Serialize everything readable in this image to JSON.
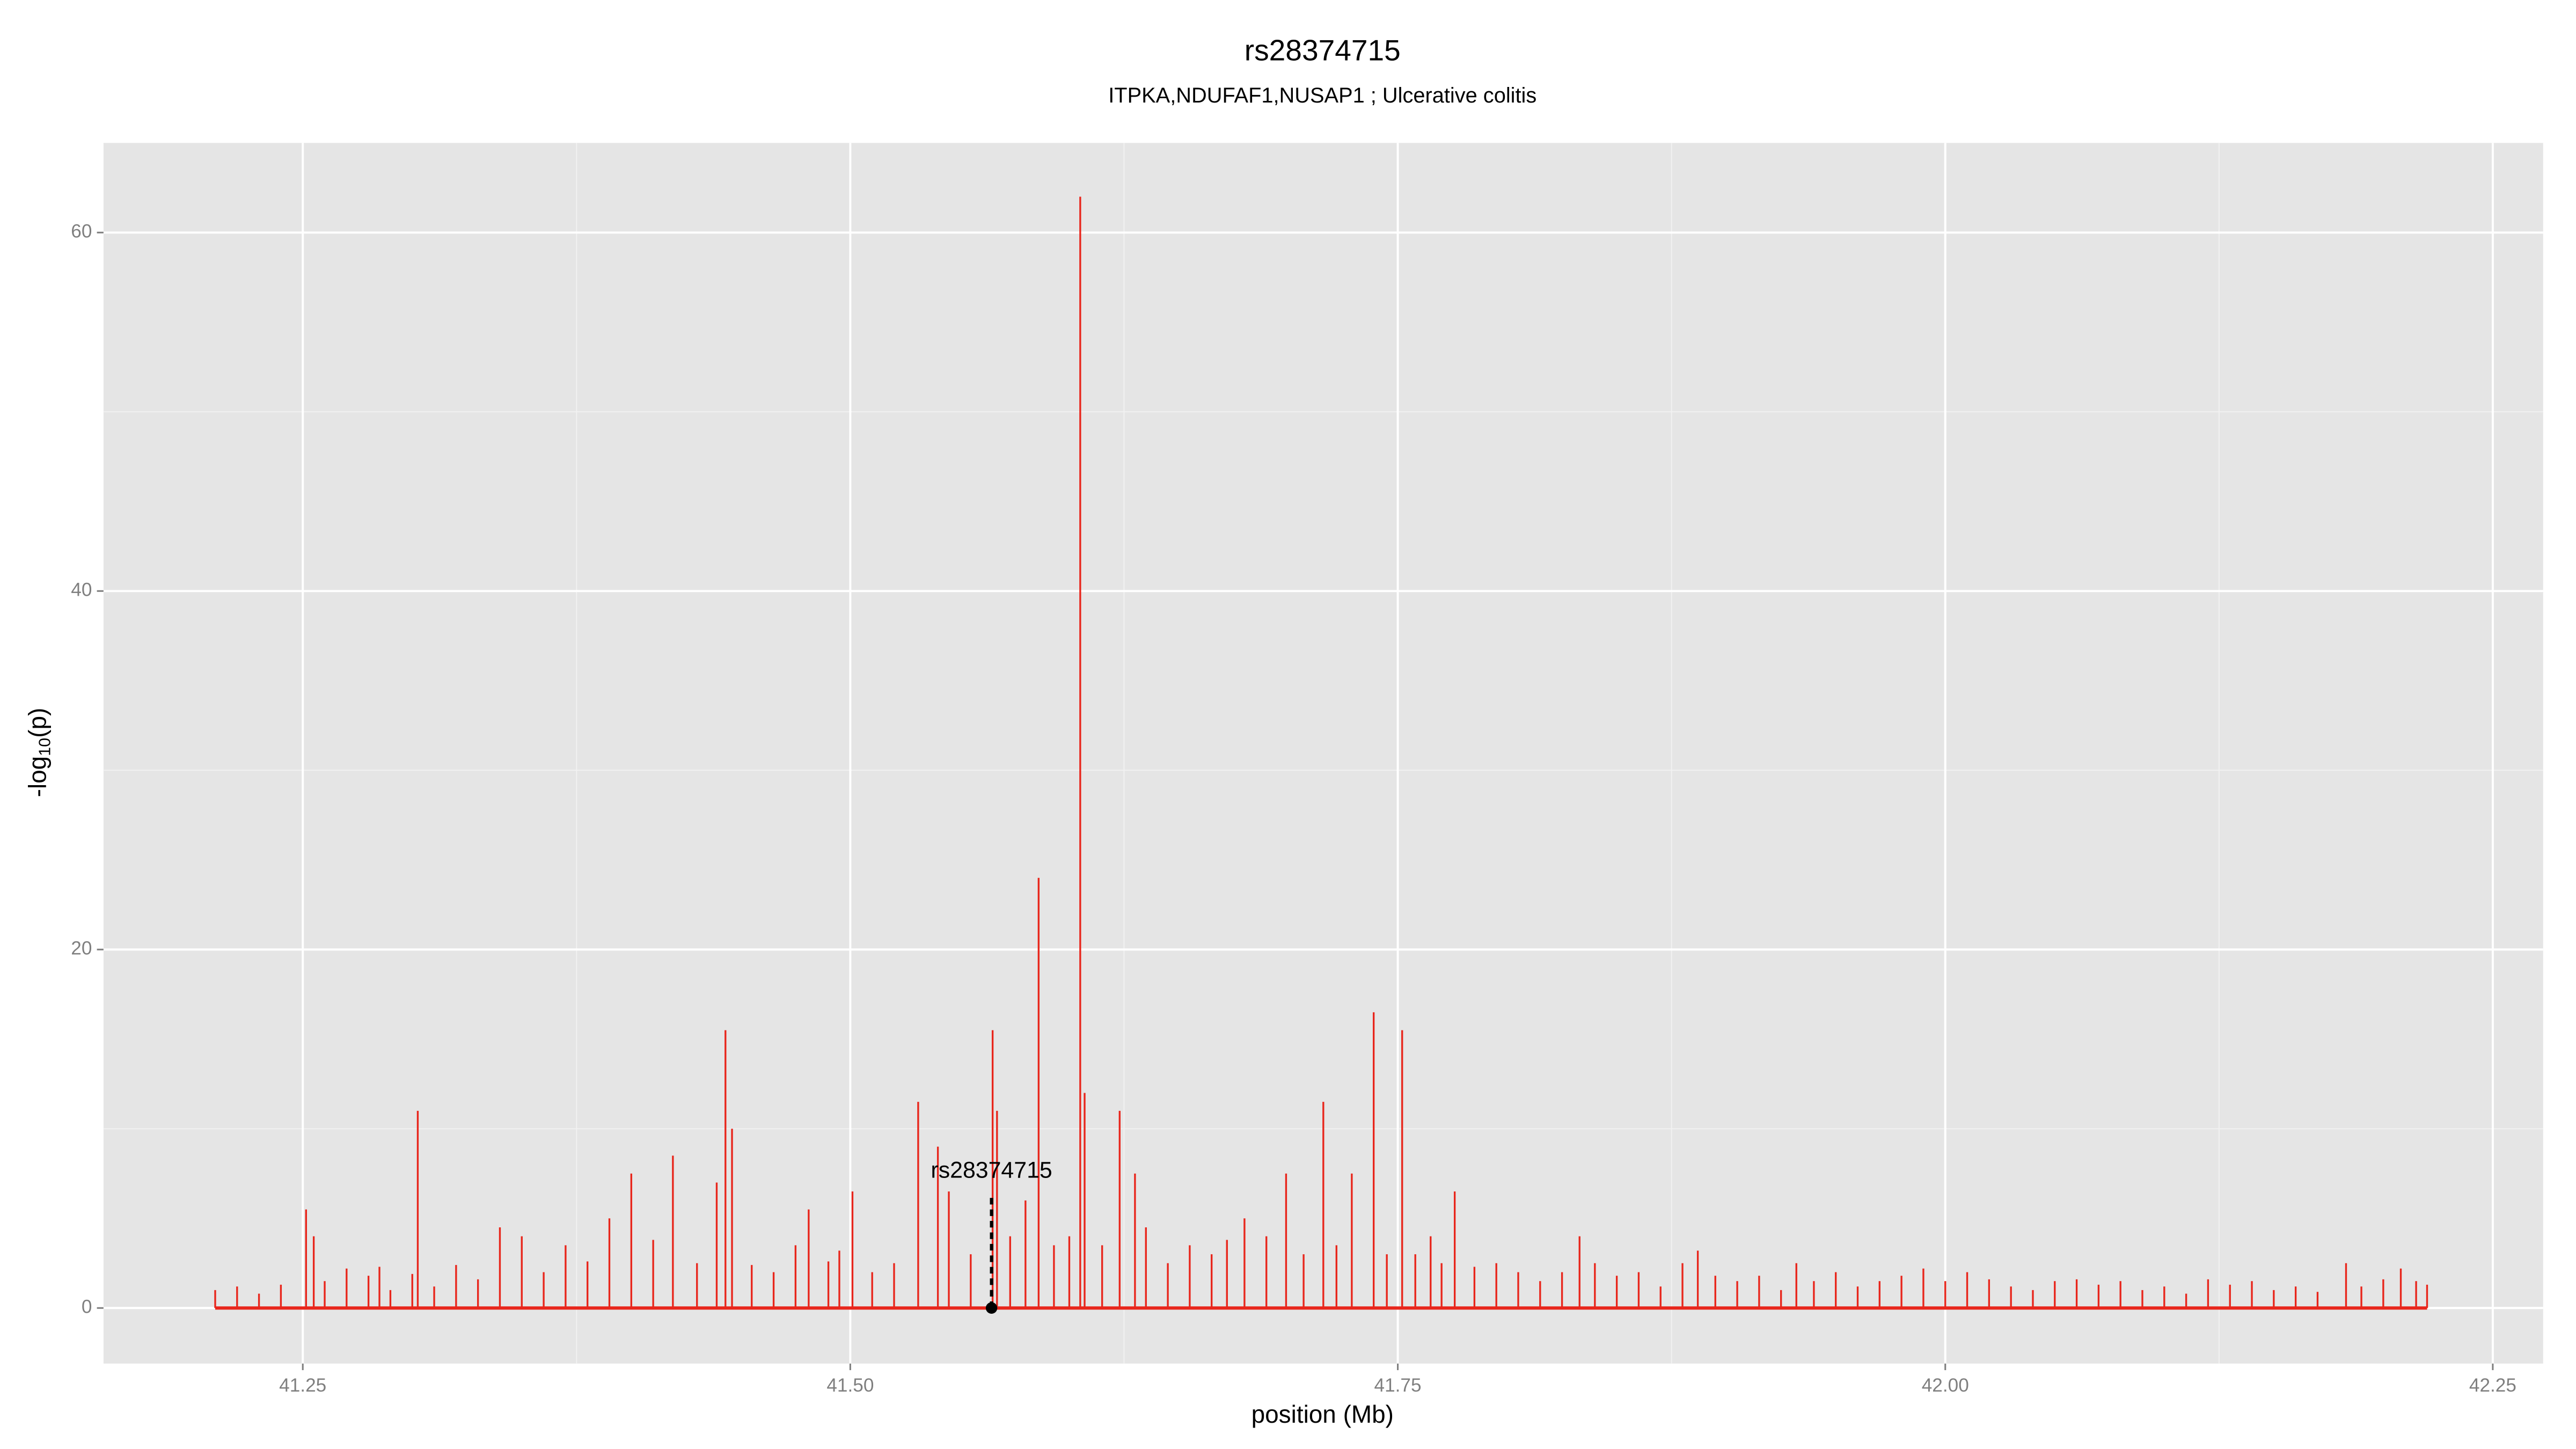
{
  "chart_data": {
    "type": "bar",
    "title": "rs28374715",
    "subtitle": "ITPKA,NDUFAF1,NUSAP1 ; Ulcerative colitis",
    "x_label": "position (Mb)",
    "y_label_parts": [
      "-log",
      "10",
      "(p)"
    ],
    "color": "#e8261c",
    "xlim": [
      41.159,
      42.273
    ],
    "xticks": [
      41.25,
      {
        "value": 41.5,
        "label": "41.50"
      },
      41.75,
      {
        "value": 42.0,
        "label": "42.00"
      },
      42.25
    ],
    "ylim": [
      -3.1,
      65
    ],
    "yticks": [
      0,
      20,
      40,
      60
    ],
    "grid": true,
    "x": [
      41.21,
      41.22,
      41.23,
      41.24,
      41.2515,
      41.255,
      41.26,
      41.27,
      41.28,
      41.285,
      41.29,
      41.3,
      41.3025,
      41.31,
      41.32,
      41.33,
      41.34,
      41.35,
      41.36,
      41.37,
      41.38,
      41.39,
      41.4,
      41.41,
      41.419,
      41.43,
      41.439,
      41.443,
      41.446,
      41.455,
      41.465,
      41.475,
      41.481,
      41.49,
      41.495,
      41.501,
      41.51,
      41.52,
      41.531,
      41.54,
      41.545,
      41.555,
      41.565,
      41.567,
      41.573,
      41.58,
      41.586,
      41.593,
      41.6,
      41.605,
      41.607,
      41.615,
      41.623,
      41.63,
      41.635,
      41.645,
      41.655,
      41.665,
      41.672,
      41.68,
      41.69,
      41.699,
      41.707,
      41.716,
      41.722,
      41.729,
      41.739,
      41.745,
      41.752,
      41.758,
      41.765,
      41.77,
      41.776,
      41.785,
      41.795,
      41.805,
      41.815,
      41.825,
      41.833,
      41.84,
      41.85,
      41.86,
      41.87,
      41.88,
      41.887,
      41.895,
      41.905,
      41.915,
      41.925,
      41.932,
      41.94,
      41.95,
      41.96,
      41.97,
      41.98,
      41.99,
      42.0,
      42.01,
      42.02,
      42.03,
      42.04,
      42.05,
      42.06,
      42.07,
      42.08,
      42.09,
      42.1,
      42.11,
      42.12,
      42.13,
      42.14,
      42.15,
      42.16,
      42.17,
      42.183,
      42.19,
      42.2,
      42.208,
      42.215,
      42.22
    ],
    "values": [
      1.0,
      1.2,
      0.8,
      1.3,
      5.5,
      4.0,
      1.5,
      2.2,
      1.8,
      2.3,
      1.0,
      1.9,
      11.0,
      1.2,
      2.4,
      1.6,
      4.5,
      4.0,
      2.0,
      3.5,
      2.6,
      5.0,
      7.5,
      3.8,
      8.5,
      2.5,
      7.0,
      15.5,
      10.0,
      2.4,
      2.0,
      3.5,
      5.5,
      2.6,
      3.2,
      6.5,
      2.0,
      2.5,
      11.5,
      9.0,
      6.5,
      3.0,
      15.5,
      11.0,
      4.0,
      6.0,
      24.0,
      3.5,
      4.0,
      62.0,
      12.0,
      3.5,
      11.0,
      7.5,
      4.5,
      2.5,
      3.5,
      3.0,
      3.8,
      5.0,
      4.0,
      7.5,
      3.0,
      11.5,
      3.5,
      7.5,
      16.5,
      3.0,
      15.5,
      3.0,
      4.0,
      2.5,
      6.5,
      2.3,
      2.5,
      2.0,
      1.5,
      2.0,
      4.0,
      2.5,
      1.8,
      2.0,
      1.2,
      2.5,
      3.2,
      1.8,
      1.5,
      1.8,
      1.0,
      2.5,
      1.5,
      2.0,
      1.2,
      1.5,
      1.8,
      2.2,
      1.5,
      2.0,
      1.6,
      1.2,
      1.0,
      1.5,
      1.6,
      1.3,
      1.5,
      1.0,
      1.2,
      0.8,
      1.6,
      1.3,
      1.5,
      1.0,
      1.2,
      0.9,
      2.5,
      1.2,
      1.6,
      2.2,
      1.5,
      1.3
    ],
    "highlight": {
      "label": "rs28374715",
      "x": 41.5645,
      "y": 0
    }
  }
}
